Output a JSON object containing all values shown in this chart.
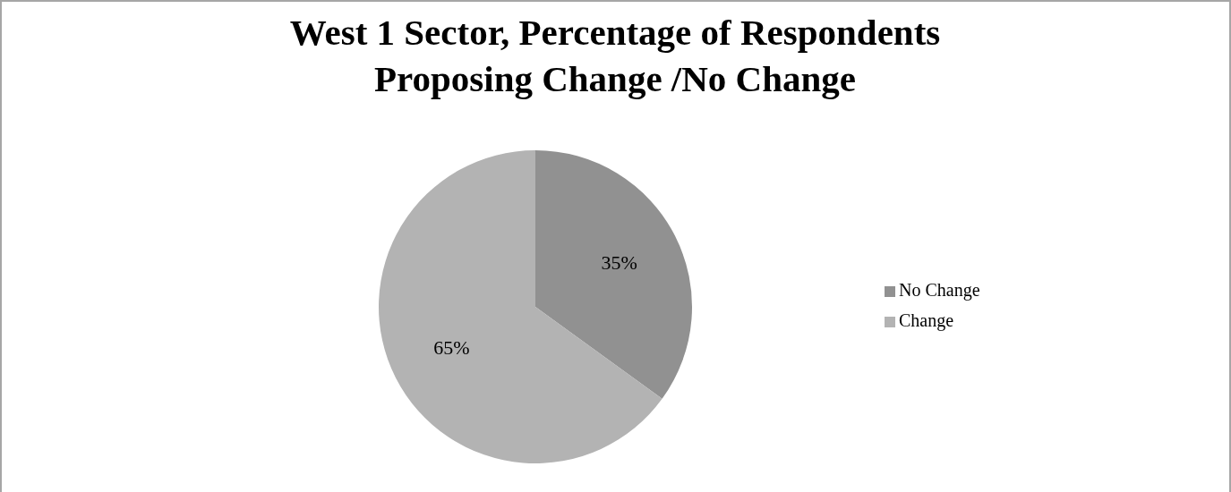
{
  "chart_data": {
    "type": "pie",
    "title": "West 1 Sector, Percentage of Respondents Proposing Change /No Change",
    "categories": [
      "No Change",
      "Change"
    ],
    "values": [
      35,
      65
    ],
    "colors": [
      "#919191",
      "#b3b3b3"
    ],
    "value_labels": [
      "35%",
      "65%"
    ],
    "legend": "right"
  }
}
